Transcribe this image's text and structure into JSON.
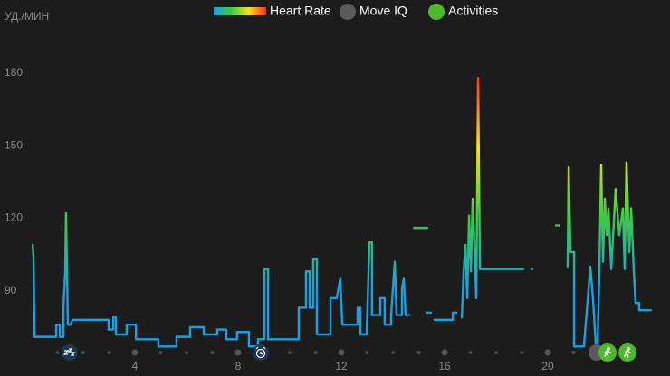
{
  "chart_data": {
    "type": "line",
    "y_label": "УД./МИН",
    "legend": [
      {
        "name": "Heart Rate",
        "colors": [
          "#1e9ee0",
          "#3cc84a",
          "#f5e61e",
          "#ff2a1e"
        ]
      },
      {
        "name": "Move IQ",
        "color": "#5a5a5a"
      },
      {
        "name": "Activities",
        "color": "#4cb82a"
      }
    ],
    "series": [
      {
        "name": "Heart Rate",
        "x": [
          0.04,
          0.07,
          0.11,
          0.95,
          0.95,
          1.09,
          1.09,
          1.23,
          1.23,
          1.3,
          1.33,
          1.37,
          1.4,
          1.51,
          1.58,
          2.98,
          2.98,
          3.16,
          3.16,
          3.26,
          3.26,
          3.68,
          3.68,
          4.04,
          4.04,
          4.91,
          4.91,
          5.61,
          5.61,
          6.14,
          6.14,
          6.67,
          6.67,
          7.19,
          7.19,
          7.54,
          7.54,
          7.96,
          7.96,
          8.42,
          8.42,
          8.77,
          8.77,
          9.02,
          9.02,
          9.16,
          9.16,
          10.35,
          10.35,
          10.63,
          10.63,
          10.77,
          10.77,
          10.91,
          10.91,
          11.05,
          11.05,
          11.58,
          11.58,
          11.82,
          11.96,
          12.04,
          12.63,
          12.63,
          12.74,
          12.74,
          12.98,
          13.09,
          13.19,
          13.19,
          13.51,
          13.51,
          13.68,
          13.68,
          13.93,
          13.93,
          14.07,
          14.14,
          14.35,
          14.35,
          14.42,
          14.49,
          14.63,
          null,
          14.81,
          15.33,
          null,
          15.33,
          15.47,
          null,
          15.61,
          16.32,
          16.32,
          16.46,
          null,
          16.67,
          16.74,
          16.81,
          16.88,
          16.95,
          17.02,
          17.09,
          17.23,
          17.3,
          17.37,
          19.05,
          null,
          19.37,
          19.4,
          null,
          20.32,
          20.42,
          null,
          20.77,
          20.81,
          20.88,
          21.02,
          21.02,
          21.4,
          21.65,
          21.75,
          21.86,
          21.93,
          22.0,
          22.07,
          22.14,
          22.21,
          22.28,
          22.35,
          22.46,
          22.63,
          22.77,
          22.91,
          22.98,
          23.05,
          23.16,
          23.23,
          23.33,
          23.4,
          23.54,
          23.54,
          24.0
        ],
        "values": [
          109,
          104,
          71,
          71,
          76,
          76,
          71,
          71,
          83,
          98,
          122,
          98,
          76,
          76,
          78,
          78,
          74,
          74,
          79,
          79,
          72,
          72,
          76,
          76,
          70,
          70,
          67,
          67,
          71,
          71,
          75,
          75,
          72,
          72,
          74,
          74,
          70,
          70,
          73,
          73,
          67,
          67,
          70,
          70,
          99,
          99,
          70,
          70,
          83,
          83,
          98,
          98,
          83,
          83,
          103,
          103,
          72,
          72,
          87,
          87,
          95,
          76,
          76,
          83,
          83,
          72,
          72,
          110,
          110,
          80,
          80,
          87,
          87,
          76,
          76,
          80,
          102,
          80,
          80,
          91,
          95,
          80,
          80,
          null,
          116,
          116,
          null,
          81,
          81,
          null,
          78,
          78,
          81,
          81,
          null,
          79,
          98,
          109,
          87,
          121,
          98,
          128,
          87,
          178,
          99,
          99,
          null,
          99,
          99,
          null,
          117,
          117,
          null,
          100,
          141,
          106,
          106,
          67,
          67,
          100,
          87,
          68,
          68,
          99,
          142,
          102,
          128,
          113,
          124,
          99,
          132,
          113,
          124,
          99,
          143,
          106,
          124,
          99,
          85,
          85,
          82,
          82
        ]
      }
    ],
    "xlim": [
      0,
      24
    ],
    "xticks": [
      4,
      8,
      12,
      16,
      20
    ],
    "ylim": [
      66,
      190
    ],
    "yticks": [
      90,
      120,
      150,
      180
    ]
  }
}
